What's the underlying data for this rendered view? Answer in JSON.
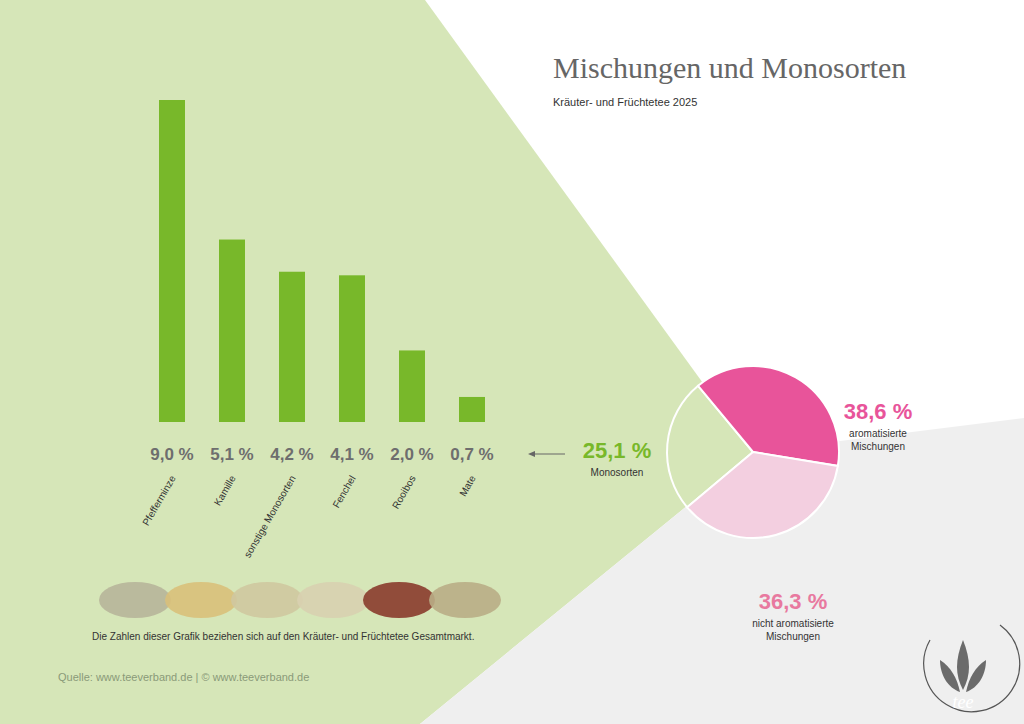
{
  "title": "Mischungen und Monosorten",
  "subtitle": "Kräuter- und Früchtetee 2025",
  "footnote": "Die Zahlen dieser Grafik beziehen sich auf den Kräuter- und Früchtetee Gesamtmarkt.",
  "source": "Quelle: www.teeverband.de | © www.teeverband.de",
  "logo_text": "tee",
  "chart_data": [
    {
      "type": "bar",
      "categories": [
        "Pfefferminze",
        "Kamille",
        "sonstige Monosorten",
        "Fenchel",
        "Rooibos",
        "Mate"
      ],
      "values": [
        9.0,
        5.1,
        4.2,
        4.1,
        2.0,
        0.7
      ],
      "value_labels": [
        "9,0 %",
        "5,1 %",
        "4,2 %",
        "4,1 %",
        "2,0 %",
        "0,7 %"
      ],
      "color": "#78b82a",
      "ylim": [
        0,
        9
      ],
      "data_labels": true,
      "tick_labels": "x",
      "grid": false
    },
    {
      "type": "pie",
      "categories": [
        "Monosorten",
        "aromatisierte Mischungen",
        "nicht aromatisierte Mischungen"
      ],
      "values": [
        25.1,
        38.6,
        36.3
      ],
      "value_labels": [
        "25,1 %",
        "38,6 %",
        "36,3 %"
      ],
      "colors": [
        "#d6e6b8",
        "#e8549a",
        "#f3cfe0"
      ],
      "data_labels": true
    }
  ]
}
